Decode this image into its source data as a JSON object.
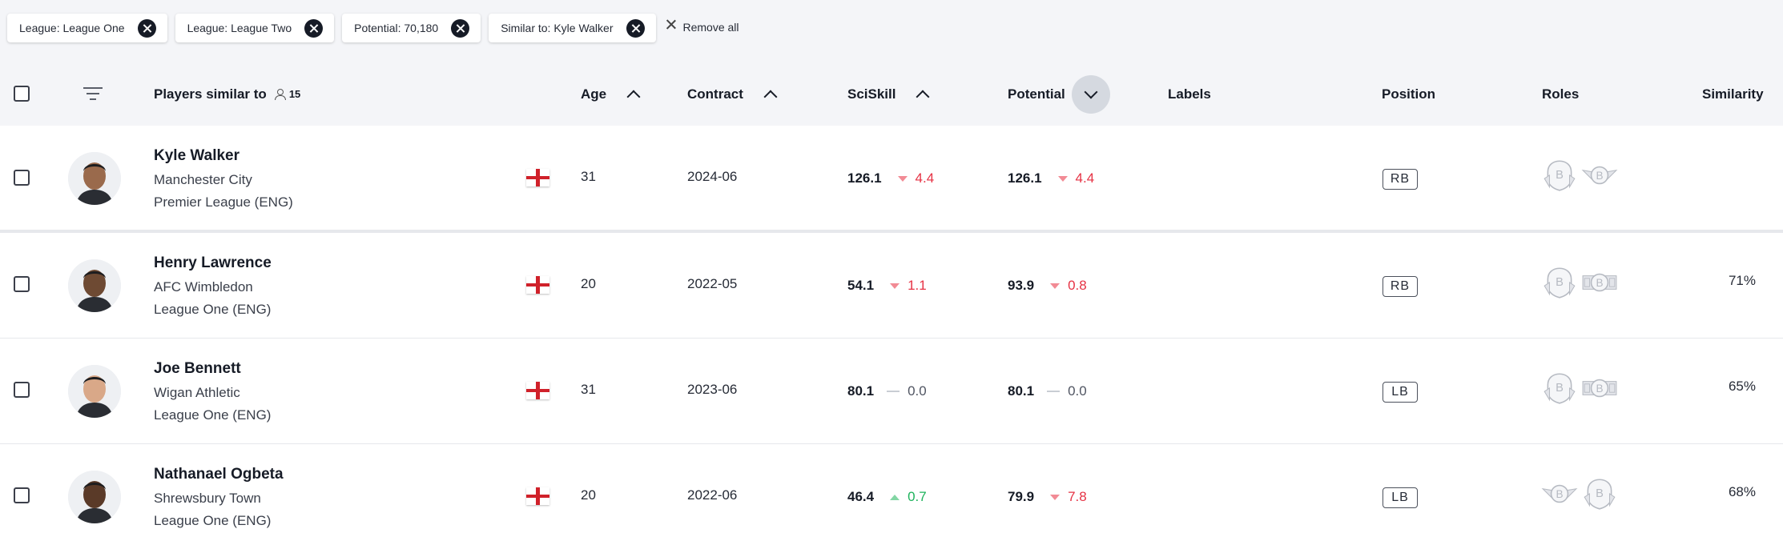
{
  "filters": [
    {
      "label": "League: League One"
    },
    {
      "label": "League: League Two"
    },
    {
      "label": "Potential: 70,180"
    },
    {
      "label": "Similar to: Kyle Walker"
    }
  ],
  "remove_all_label": "Remove all",
  "header": {
    "players_label": "Players similar to",
    "count": "15",
    "age": "Age",
    "contract": "Contract",
    "sciskill": "SciSkill",
    "potential": "Potential",
    "labels": "Labels",
    "position": "Position",
    "roles": "Roles",
    "similarity": "Similarity"
  },
  "rows": [
    {
      "name": "Kyle Walker",
      "club": "Manchester City",
      "league": "Premier League (ENG)",
      "nationality_flag": "england-flag",
      "age": "31",
      "contract": "2024-06",
      "sciskill": "126.1",
      "sciskill_change": "4.4",
      "sciskill_trend": "down",
      "potential": "126.1",
      "potential_change": "4.4",
      "potential_trend": "down",
      "position": "RB",
      "roles": [
        "role-badge-shield-icon",
        "role-badge-winged-icon"
      ],
      "similarity": ""
    },
    {
      "name": "Henry Lawrence",
      "club": "AFC Wimbledon",
      "league": "League One (ENG)",
      "nationality_flag": "england-flag",
      "age": "20",
      "contract": "2022-05",
      "sciskill": "54.1",
      "sciskill_change": "1.1",
      "sciskill_trend": "down",
      "potential": "93.9",
      "potential_change": "0.8",
      "potential_trend": "down",
      "position": "RB",
      "roles": [
        "role-badge-shield-icon",
        "role-badge-banner-icon"
      ],
      "similarity": "71%"
    },
    {
      "name": "Joe Bennett",
      "club": "Wigan Athletic",
      "league": "League One (ENG)",
      "nationality_flag": "england-flag",
      "age": "31",
      "contract": "2023-06",
      "sciskill": "80.1",
      "sciskill_change": "0.0",
      "sciskill_trend": "flat",
      "potential": "80.1",
      "potential_change": "0.0",
      "potential_trend": "flat",
      "position": "LB",
      "roles": [
        "role-badge-shield-icon",
        "role-badge-banner-icon"
      ],
      "similarity": "65%"
    },
    {
      "name": "Nathanael Ogbeta",
      "club": "Shrewsbury Town",
      "league": "League One (ENG)",
      "nationality_flag": "england-flag",
      "age": "20",
      "contract": "2022-06",
      "sciskill": "46.4",
      "sciskill_change": "0.7",
      "sciskill_trend": "up",
      "potential": "79.9",
      "potential_change": "7.8",
      "potential_trend": "down",
      "position": "LB",
      "roles": [
        "role-badge-winged-icon",
        "role-badge-shield-icon"
      ],
      "similarity": "68%"
    }
  ],
  "colors": {
    "negative": "#e63244",
    "positive": "#1eb35c",
    "accent_dark": "#161b26"
  }
}
